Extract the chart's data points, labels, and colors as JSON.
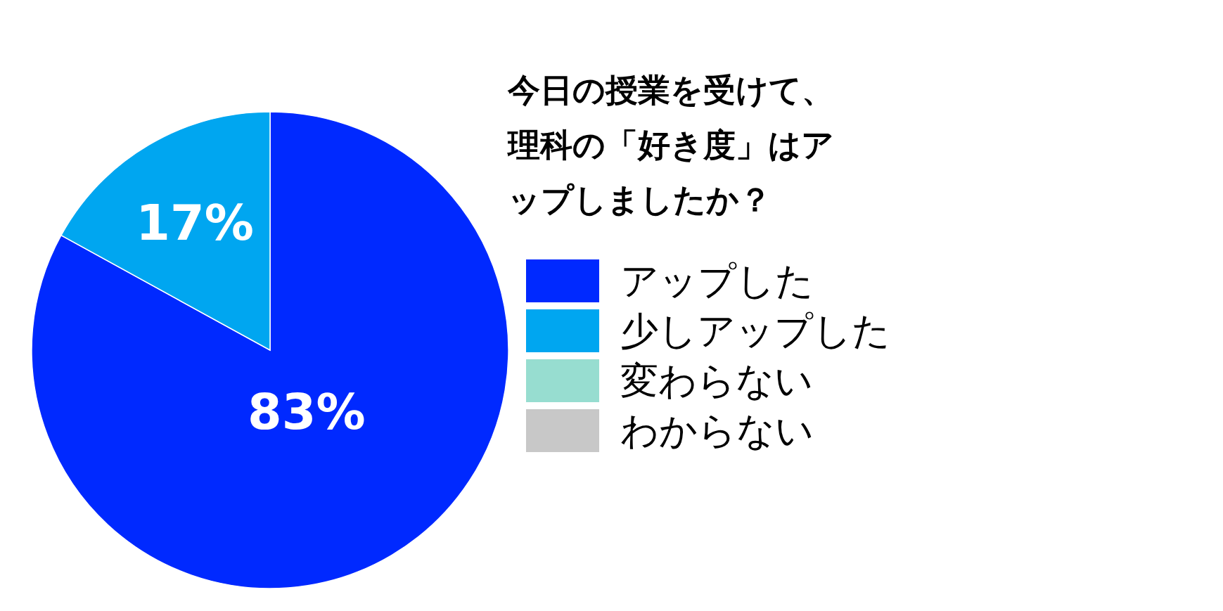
{
  "chart_data": {
    "type": "pie",
    "title": "今日の授業を受けて、理科の「好き度」はアップしましたか？",
    "categories": [
      "アップした",
      "少しアップした",
      "変わらない",
      "わからない"
    ],
    "values": [
      83,
      17,
      0,
      0
    ],
    "colors": [
      "#0029ff",
      "#00a6f0",
      "#97ddd0",
      "#c8c8c8"
    ],
    "value_labels": [
      "83%",
      "17%",
      null,
      null
    ],
    "legend": "right"
  }
}
